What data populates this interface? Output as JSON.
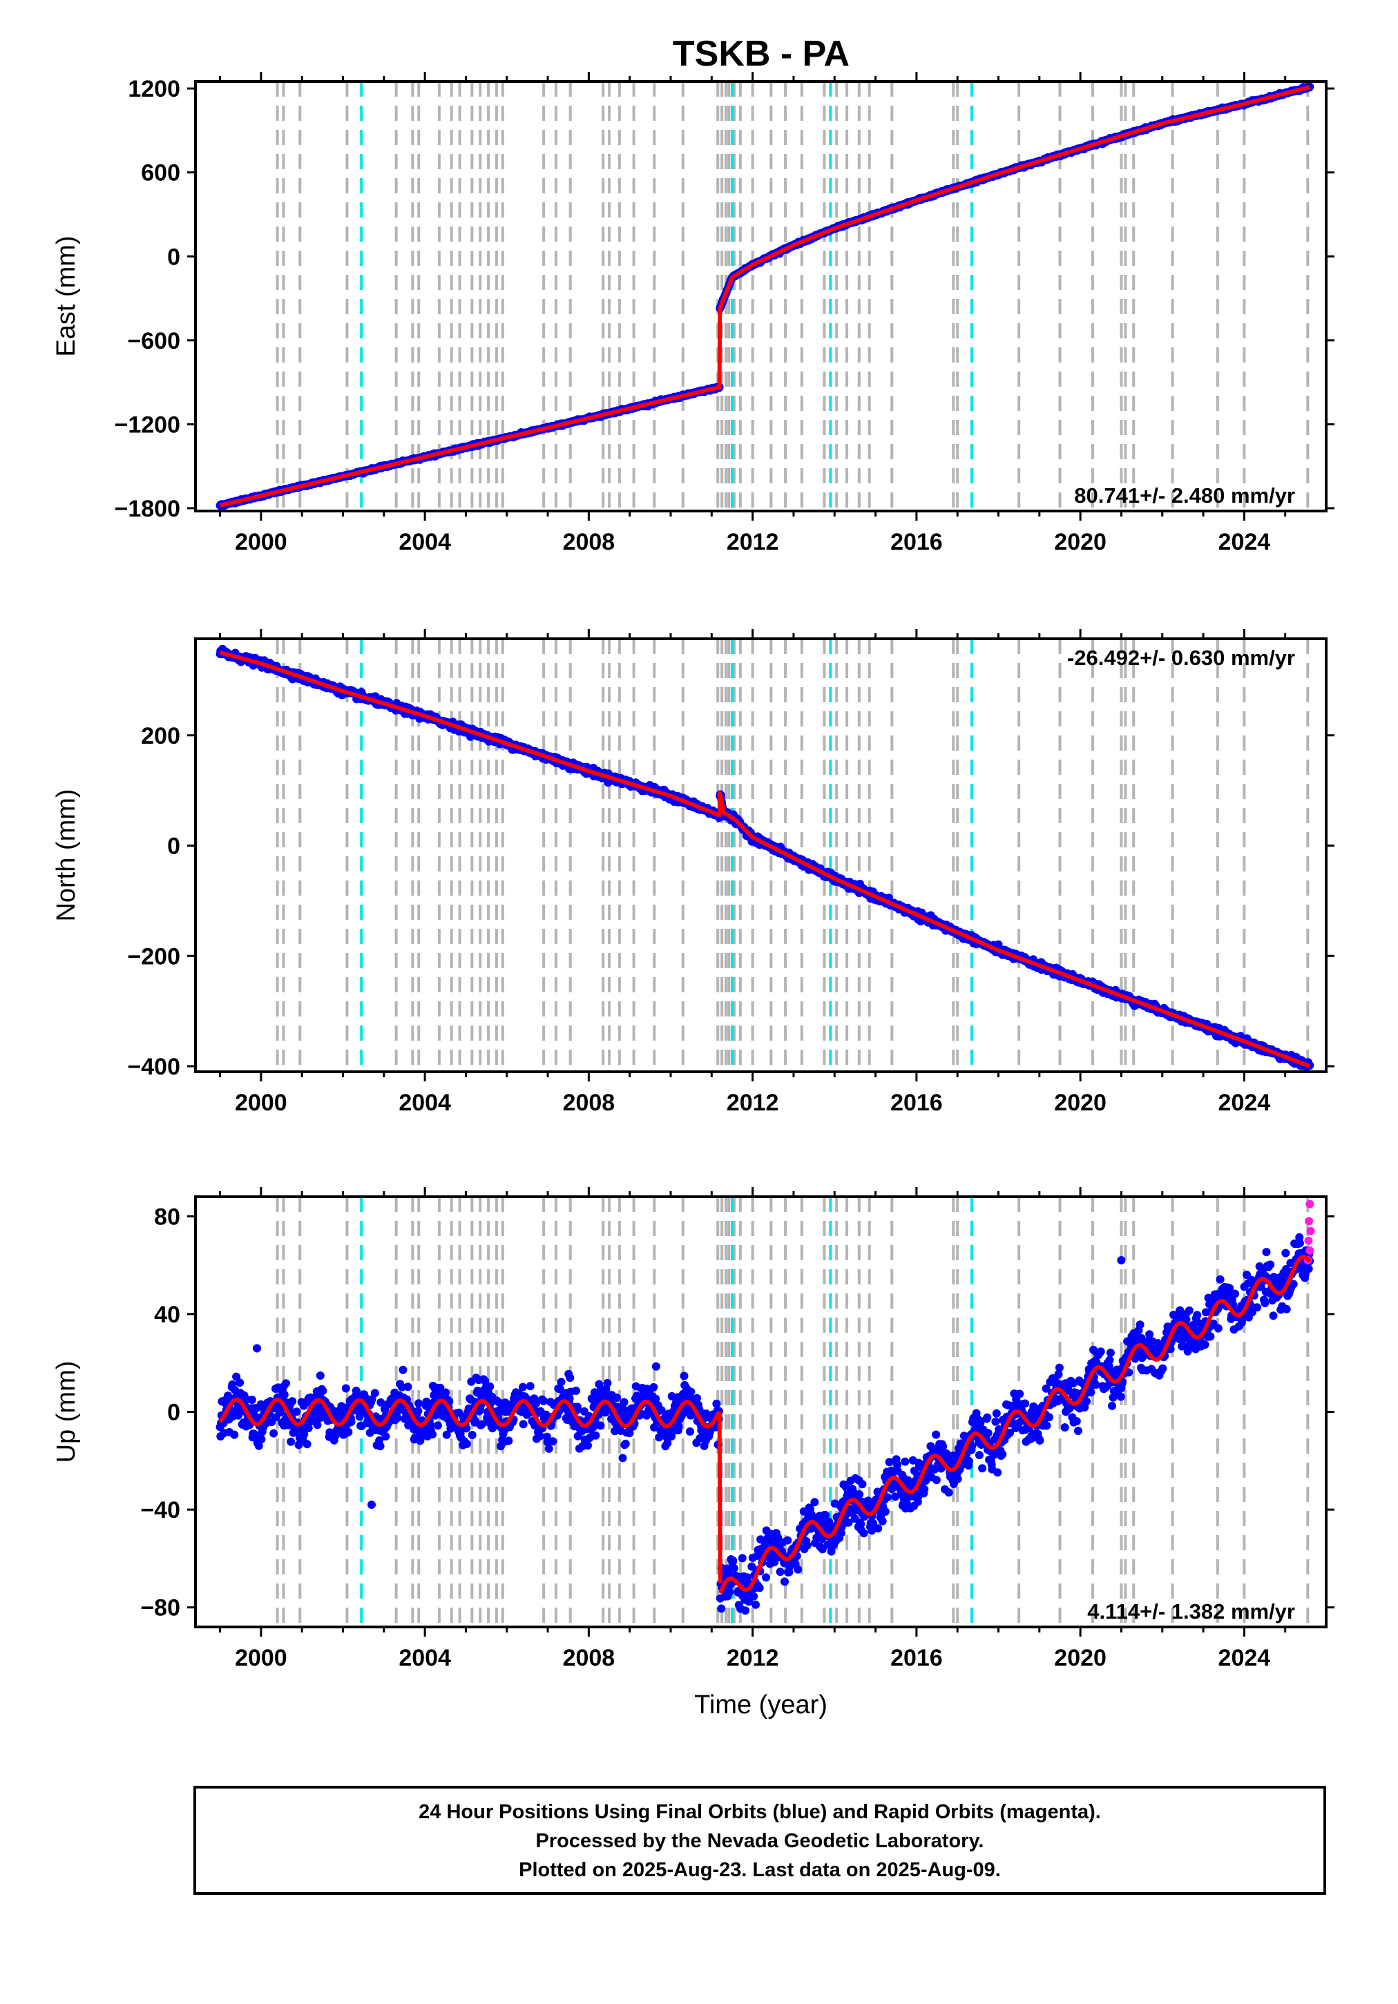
{
  "colors": {
    "final_points": "#0000ff",
    "rapid_points": "#ff1adf",
    "model_line": "#ff0000",
    "equipment_change": "#b4b4b4",
    "earthquake": "#00e5e5"
  },
  "chart_data": [
    {
      "type": "scatter",
      "id": "east",
      "title": "TSKB - PA",
      "xlabel": "",
      "ylabel": "East (mm)",
      "xlim": [
        1998.4,
        2026.0
      ],
      "ylim": [
        -1820,
        1250
      ],
      "yticks": [
        -1800,
        -1200,
        -600,
        0,
        600,
        1200
      ],
      "xticks": [
        2000,
        2004,
        2008,
        2012,
        2016,
        2020,
        2024
      ],
      "rate": "80.741+/- 2.480 mm/yr",
      "rate_position": "bottom-right",
      "trend": [
        [
          1999.0,
          -1780
        ],
        [
          2011.19,
          -935
        ],
        [
          2011.19,
          -380
        ],
        [
          2011.5,
          -150
        ],
        [
          2012.0,
          -60
        ],
        [
          2013.0,
          80
        ],
        [
          2014.0,
          200
        ],
        [
          2016.0,
          400
        ],
        [
          2018.0,
          590
        ],
        [
          2020.0,
          770
        ],
        [
          2022.0,
          950
        ],
        [
          2024.0,
          1090
        ],
        [
          2025.6,
          1210
        ]
      ]
    },
    {
      "type": "scatter",
      "id": "north",
      "title": "",
      "xlabel": "",
      "ylabel": "North (mm)",
      "xlim": [
        1998.4,
        2026.0
      ],
      "ylim": [
        -410,
        375
      ],
      "yticks": [
        -400,
        -200,
        0,
        200
      ],
      "xticks": [
        2000,
        2004,
        2008,
        2012,
        2016,
        2020,
        2024
      ],
      "rate": "-26.492+/- 0.630 mm/yr",
      "rate_position": "top-right",
      "trend": [
        [
          1999.0,
          350
        ],
        [
          2000.0,
          330
        ],
        [
          2002.0,
          280
        ],
        [
          2004.0,
          235
        ],
        [
          2006.0,
          185
        ],
        [
          2008.0,
          135
        ],
        [
          2010.0,
          90
        ],
        [
          2011.19,
          55
        ],
        [
          2011.2,
          95
        ],
        [
          2011.3,
          60
        ],
        [
          2011.6,
          45
        ],
        [
          2012.0,
          15
        ],
        [
          2014.0,
          -60
        ],
        [
          2016.0,
          -125
        ],
        [
          2018.0,
          -190
        ],
        [
          2020.0,
          -245
        ],
        [
          2022.0,
          -300
        ],
        [
          2024.0,
          -355
        ],
        [
          2025.6,
          -400
        ]
      ]
    },
    {
      "type": "scatter",
      "id": "up",
      "title": "",
      "xlabel": "Time (year)",
      "ylabel": "Up (mm)",
      "xlim": [
        1998.4,
        2026.0
      ],
      "ylim": [
        -88,
        88
      ],
      "yticks": [
        -80,
        -40,
        0,
        40,
        80
      ],
      "xticks": [
        2000,
        2004,
        2008,
        2012,
        2016,
        2020,
        2024
      ],
      "rate": "4.114+/- 1.382 mm/yr",
      "rate_position": "bottom-right",
      "seasonal_amplitude_mm": 5,
      "scatter_noise_mm": 6,
      "segments": [
        {
          "start": 1999.0,
          "end": 2011.19,
          "value_start": 0,
          "value_end": -1
        },
        {
          "start": 2011.21,
          "end": 2025.6,
          "value_start": -70,
          "value_end": 60
        }
      ],
      "rapid_points": [
        [
          2025.55,
          62
        ],
        [
          2025.57,
          70
        ],
        [
          2025.58,
          78
        ],
        [
          2025.6,
          85
        ],
        [
          2025.6,
          66
        ],
        [
          2025.62,
          74
        ]
      ],
      "outliers": [
        [
          2002.7,
          -38
        ],
        [
          2021.0,
          62
        ],
        [
          1999.9,
          26
        ]
      ]
    }
  ],
  "equipment_changes": [
    2000.4,
    2000.55,
    2000.95,
    2002.1,
    2003.3,
    2003.7,
    2003.85,
    2004.35,
    2004.65,
    2004.85,
    2005.15,
    2005.35,
    2005.55,
    2005.75,
    2005.9,
    2006.9,
    2007.2,
    2007.55,
    2008.35,
    2008.5,
    2008.75,
    2009.1,
    2009.6,
    2010.3,
    2011.15,
    2011.25,
    2011.35,
    2011.42,
    2011.55,
    2011.7,
    2012.0,
    2012.45,
    2012.8,
    2013.2,
    2013.75,
    2014.05,
    2014.3,
    2014.6,
    2014.85,
    2015.4,
    2016.9,
    2017.0,
    2018.5,
    2019.5,
    2020.3,
    2021.0,
    2021.1,
    2021.3,
    2022.25,
    2023.35,
    2024.0,
    2025.55
  ],
  "earthquakes": [
    2002.45,
    2011.5,
    2013.9,
    2017.35
  ],
  "footer": {
    "line1": "24 Hour Positions Using Final Orbits (blue) and Rapid Orbits (magenta).",
    "line2": "Processed by the Nevada Geodetic Laboratory.",
    "line3": "Plotted on 2025-Aug-23. Last data on 2025-Aug-09."
  }
}
